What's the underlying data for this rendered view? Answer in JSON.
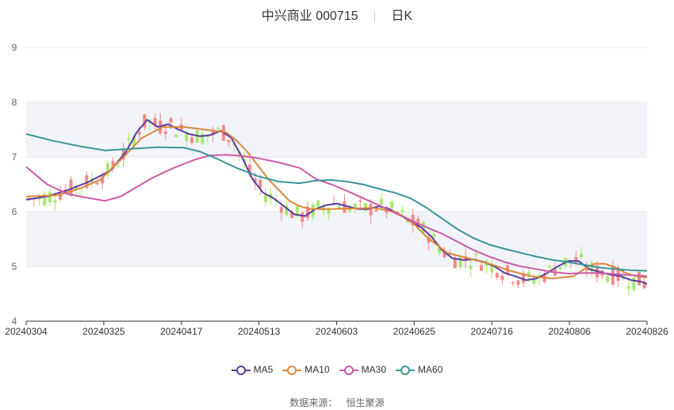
{
  "header": {
    "name": "中兴商业",
    "code": "000715",
    "period": "日K"
  },
  "footer": {
    "source_label": "数据来源：",
    "source_name": "恒生聚源"
  },
  "colors": {
    "up": "#f28a8a",
    "down": "#a8e86e",
    "grid": "#e6e8ef",
    "band": "#f2f4f9",
    "axis": "#333333"
  },
  "chart_data": {
    "type": "candlestick",
    "ylim": [
      4,
      9
    ],
    "yticks": [
      4,
      5,
      6,
      7,
      8,
      9
    ],
    "xticks": [
      "20240304",
      "20240325",
      "20240417",
      "20240513",
      "20240603",
      "20240625",
      "20240716",
      "20240806",
      "20240826"
    ],
    "candle_count": 118,
    "legend_position": "bottom",
    "legend": [
      "MA5",
      "MA10",
      "MA30",
      "MA60"
    ],
    "series": [
      {
        "name": "MA5",
        "color": "#5c3d9e",
        "points": [
          [
            0,
            6.22
          ],
          [
            4,
            6.28
          ],
          [
            8,
            6.4
          ],
          [
            12,
            6.55
          ],
          [
            16,
            6.75
          ],
          [
            19,
            7.1
          ],
          [
            21,
            7.45
          ],
          [
            23,
            7.68
          ],
          [
            25,
            7.55
          ],
          [
            27,
            7.6
          ],
          [
            29,
            7.5
          ],
          [
            31,
            7.42
          ],
          [
            33,
            7.38
          ],
          [
            35,
            7.4
          ],
          [
            37,
            7.48
          ],
          [
            39,
            7.35
          ],
          [
            41,
            7.0
          ],
          [
            43,
            6.6
          ],
          [
            45,
            6.35
          ],
          [
            47,
            6.25
          ],
          [
            49,
            6.1
          ],
          [
            51,
            5.95
          ],
          [
            53,
            5.92
          ],
          [
            55,
            6.05
          ],
          [
            57,
            6.12
          ],
          [
            59,
            6.15
          ],
          [
            61,
            6.1
          ],
          [
            63,
            6.05
          ],
          [
            65,
            6.05
          ],
          [
            67,
            6.1
          ],
          [
            69,
            6.05
          ],
          [
            71,
            5.95
          ],
          [
            73,
            5.82
          ],
          [
            75,
            5.72
          ],
          [
            77,
            5.55
          ],
          [
            79,
            5.3
          ],
          [
            81,
            5.15
          ],
          [
            83,
            5.12
          ],
          [
            85,
            5.13
          ],
          [
            87,
            5.08
          ],
          [
            89,
            5.0
          ],
          [
            91,
            4.88
          ],
          [
            93,
            4.82
          ],
          [
            95,
            4.75
          ],
          [
            97,
            4.78
          ],
          [
            99,
            4.88
          ],
          [
            101,
            5.0
          ],
          [
            103,
            5.1
          ],
          [
            105,
            5.1
          ],
          [
            107,
            4.95
          ],
          [
            109,
            4.9
          ],
          [
            111,
            4.85
          ],
          [
            113,
            4.82
          ],
          [
            115,
            4.75
          ],
          [
            117,
            4.72
          ],
          [
            118,
            4.68
          ]
        ]
      },
      {
        "name": "MA10",
        "color": "#d9883a",
        "points": [
          [
            0,
            6.28
          ],
          [
            6,
            6.3
          ],
          [
            10,
            6.42
          ],
          [
            14,
            6.58
          ],
          [
            18,
            6.95
          ],
          [
            22,
            7.35
          ],
          [
            26,
            7.55
          ],
          [
            30,
            7.55
          ],
          [
            34,
            7.5
          ],
          [
            38,
            7.45
          ],
          [
            40,
            7.3
          ],
          [
            42,
            7.1
          ],
          [
            44,
            6.85
          ],
          [
            46,
            6.6
          ],
          [
            48,
            6.4
          ],
          [
            50,
            6.2
          ],
          [
            52,
            6.1
          ],
          [
            54,
            6.05
          ],
          [
            58,
            6.05
          ],
          [
            62,
            6.06
          ],
          [
            66,
            6.07
          ],
          [
            70,
            6.0
          ],
          [
            72,
            5.9
          ],
          [
            74,
            5.75
          ],
          [
            76,
            5.55
          ],
          [
            78,
            5.4
          ],
          [
            80,
            5.25
          ],
          [
            84,
            5.15
          ],
          [
            88,
            5.05
          ],
          [
            92,
            4.92
          ],
          [
            96,
            4.82
          ],
          [
            100,
            4.78
          ],
          [
            104,
            4.82
          ],
          [
            106,
            4.95
          ],
          [
            108,
            5.05
          ],
          [
            110,
            5.05
          ],
          [
            112,
            4.98
          ],
          [
            114,
            4.88
          ],
          [
            116,
            4.82
          ],
          [
            118,
            4.8
          ]
        ]
      },
      {
        "name": "MA30",
        "color": "#cc5aa6",
        "points": [
          [
            0,
            6.82
          ],
          [
            4,
            6.5
          ],
          [
            8,
            6.32
          ],
          [
            12,
            6.25
          ],
          [
            15,
            6.2
          ],
          [
            18,
            6.28
          ],
          [
            21,
            6.45
          ],
          [
            24,
            6.62
          ],
          [
            28,
            6.8
          ],
          [
            32,
            6.95
          ],
          [
            35,
            7.03
          ],
          [
            38,
            7.04
          ],
          [
            41,
            7.02
          ],
          [
            44,
            6.98
          ],
          [
            48,
            6.9
          ],
          [
            52,
            6.8
          ],
          [
            55,
            6.6
          ],
          [
            58,
            6.5
          ],
          [
            61,
            6.38
          ],
          [
            64,
            6.25
          ],
          [
            67,
            6.12
          ],
          [
            70,
            5.98
          ],
          [
            73,
            5.85
          ],
          [
            76,
            5.72
          ],
          [
            79,
            5.6
          ],
          [
            82,
            5.45
          ],
          [
            85,
            5.3
          ],
          [
            88,
            5.18
          ],
          [
            91,
            5.08
          ],
          [
            94,
            5.0
          ],
          [
            97,
            4.95
          ],
          [
            100,
            4.9
          ],
          [
            103,
            4.87
          ],
          [
            106,
            4.88
          ],
          [
            109,
            4.88
          ],
          [
            112,
            4.86
          ],
          [
            115,
            4.84
          ],
          [
            118,
            4.82
          ]
        ]
      },
      {
        "name": "MA60",
        "color": "#3b9497",
        "points": [
          [
            0,
            7.42
          ],
          [
            5,
            7.3
          ],
          [
            10,
            7.2
          ],
          [
            15,
            7.12
          ],
          [
            20,
            7.15
          ],
          [
            25,
            7.18
          ],
          [
            30,
            7.17
          ],
          [
            33,
            7.1
          ],
          [
            36,
            6.98
          ],
          [
            40,
            6.8
          ],
          [
            44,
            6.65
          ],
          [
            48,
            6.55
          ],
          [
            52,
            6.52
          ],
          [
            55,
            6.57
          ],
          [
            58,
            6.58
          ],
          [
            61,
            6.55
          ],
          [
            64,
            6.5
          ],
          [
            67,
            6.42
          ],
          [
            70,
            6.35
          ],
          [
            73,
            6.25
          ],
          [
            76,
            6.08
          ],
          [
            79,
            5.88
          ],
          [
            82,
            5.68
          ],
          [
            85,
            5.52
          ],
          [
            88,
            5.4
          ],
          [
            91,
            5.32
          ],
          [
            94,
            5.25
          ],
          [
            97,
            5.18
          ],
          [
            100,
            5.12
          ],
          [
            103,
            5.08
          ],
          [
            106,
            5.03
          ],
          [
            109,
            4.98
          ],
          [
            112,
            4.95
          ],
          [
            115,
            4.93
          ],
          [
            118,
            4.92
          ]
        ]
      }
    ]
  }
}
